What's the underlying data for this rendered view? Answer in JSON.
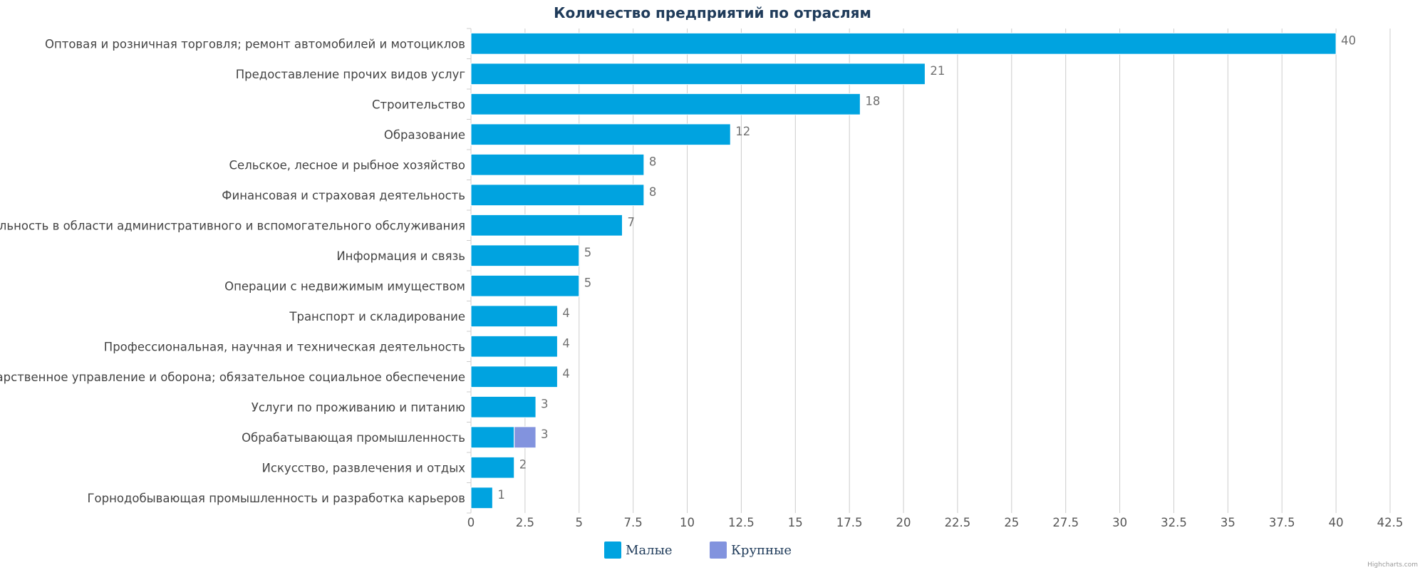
{
  "chart_data": {
    "type": "bar",
    "orientation": "horizontal",
    "stacked": true,
    "title": "Количество предприятий по отраслям",
    "categories": [
      "Оптовая и розничная торговля; ремонт автомобилей и мотоциклов",
      "Предоставление прочих видов услуг",
      "Строительство",
      "Образование",
      "Сельское, лесное и рыбное хозяйство",
      "Финансовая и страховая деятельность",
      "Деятельность в области административного и вспомогательного обслуживания",
      "Информация и связь",
      "Операции с недвижимым имуществом",
      "Транспорт и складирование",
      "Профессиональная, научная и техническая деятельность",
      "Государственное управление и оборона; обязательное социальное обеспечение",
      "Услуги по проживанию и питанию",
      "Обрабатывающая промышленность",
      "Искусство, развлечения и отдых",
      "Горнодобывающая промышленность и разработка карьеров"
    ],
    "series": [
      {
        "name": "Малые",
        "color": "#00a3e0",
        "values": [
          40,
          21,
          18,
          12,
          8,
          8,
          7,
          5,
          5,
          4,
          4,
          4,
          3,
          2,
          2,
          1
        ]
      },
      {
        "name": "Крупные",
        "color": "#8293de",
        "values": [
          0,
          0,
          0,
          0,
          0,
          0,
          0,
          0,
          0,
          0,
          0,
          0,
          0,
          1,
          0,
          0
        ]
      }
    ],
    "totals": [
      "40",
      "21",
      "18",
      "12",
      "8",
      "8",
      "7",
      "5",
      "5",
      "4",
      "4",
      "4",
      "3",
      "3",
      "2",
      "1"
    ],
    "xlim": [
      0,
      42.5
    ],
    "xticks": [
      0,
      2.5,
      5,
      7.5,
      10,
      12.5,
      15,
      17.5,
      20,
      22.5,
      25,
      27.5,
      30,
      32.5,
      35,
      37.5,
      40,
      42.5
    ],
    "xtick_labels": [
      "0",
      "2.5",
      "5",
      "7.5",
      "10",
      "12.5",
      "15",
      "17.5",
      "20",
      "22.5",
      "25",
      "27.5",
      "30",
      "32.5",
      "35",
      "37.5",
      "40",
      "42.5"
    ],
    "grid": true,
    "legend_position": "bottom-center",
    "xlabel": "",
    "ylabel": ""
  },
  "credits": "Highcharts.com"
}
